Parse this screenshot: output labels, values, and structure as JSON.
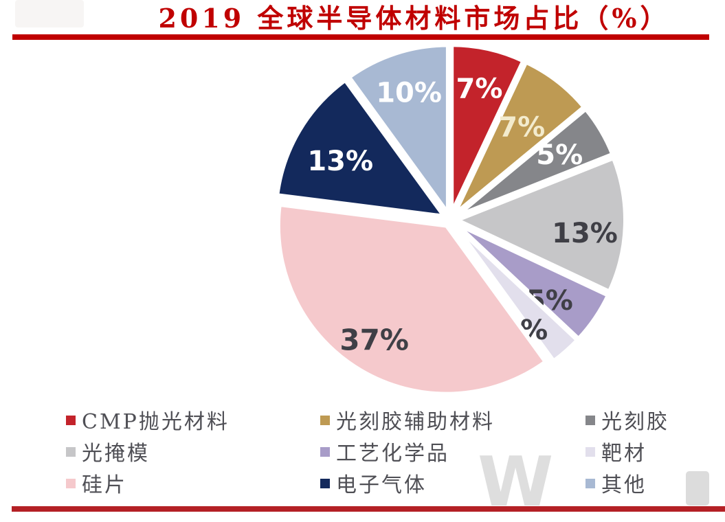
{
  "title": "2019 全球半导体材料市场占比（%）",
  "watermark": "W",
  "colors": {
    "accent_red": "#c00000",
    "bottom_rule_red": "#b42025",
    "legend_text": "#4f4f55",
    "dark_label": "#3f3f46",
    "white_label": "#ffffff"
  },
  "chart_data": {
    "type": "pie",
    "title": "2019 全球半导体材料市场占比（%）",
    "start_angle_deg": 0,
    "direction": "clockwise",
    "exploded": true,
    "legend_position": "bottom",
    "legend_grid": "3x3",
    "slices": [
      {
        "label": "CMP抛光材料",
        "value": 7,
        "pct_label": "7%",
        "color": "#c3232b",
        "label_color": "#ffffff"
      },
      {
        "label": "光刻胶辅助材料",
        "value": 7,
        "pct_label": "7%",
        "color": "#be9a53",
        "label_color": "#f3ebcd"
      },
      {
        "label": "光刻胶",
        "value": 5,
        "pct_label": "5%",
        "color": "#85868a",
        "label_color": "#ffffff"
      },
      {
        "label": "光掩模",
        "value": 13,
        "pct_label": "13%",
        "color": "#c6c6c8",
        "label_color": "#3f3f46"
      },
      {
        "label": "工艺化学品",
        "value": 5,
        "pct_label": "5%",
        "color": "#a89cc8",
        "label_color": "#3f3f46"
      },
      {
        "label": "靶材",
        "value": 3,
        "pct_label": "3%",
        "color": "#e2dfec",
        "label_color": "#3f3f46"
      },
      {
        "label": "硅片",
        "value": 37,
        "pct_label": "37%",
        "color": "#f5c9cc",
        "label_color": "#3f3f46"
      },
      {
        "label": "电子气体",
        "value": 13,
        "pct_label": "13%",
        "color": "#13295c",
        "label_color": "#ffffff"
      },
      {
        "label": "其他",
        "value": 10,
        "pct_label": "10%",
        "color": "#a8b9d3",
        "label_color": "#ffffff"
      }
    ]
  }
}
